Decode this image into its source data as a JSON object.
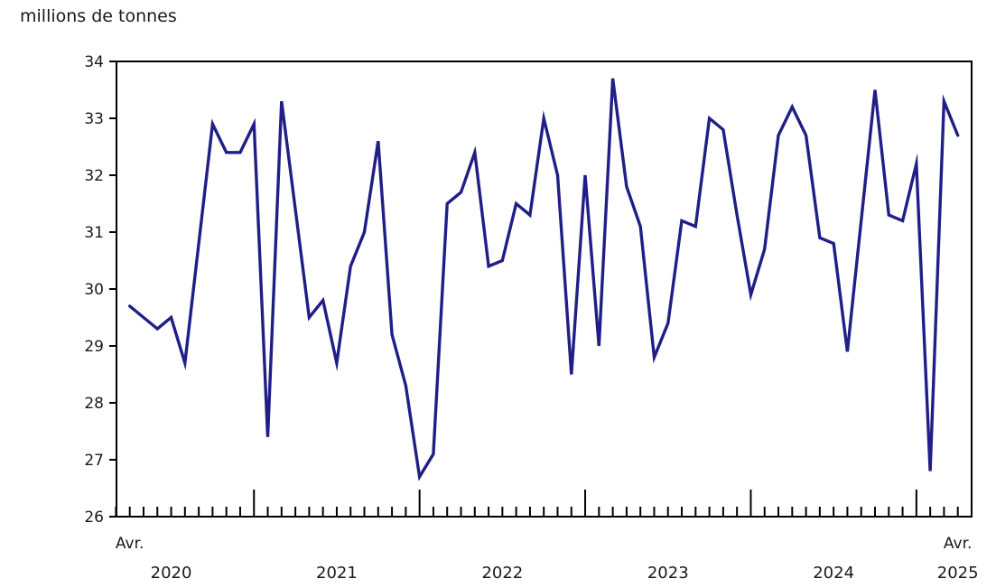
{
  "chart_data": {
    "type": "line",
    "title": "millions de tonnes",
    "categories": [
      "2020-04",
      "2020-05",
      "2020-06",
      "2020-07",
      "2020-08",
      "2020-09",
      "2020-10",
      "2020-11",
      "2020-12",
      "2021-01",
      "2021-02",
      "2021-03",
      "2021-04",
      "2021-05",
      "2021-06",
      "2021-07",
      "2021-08",
      "2021-09",
      "2021-10",
      "2021-11",
      "2021-12",
      "2022-01",
      "2022-02",
      "2022-03",
      "2022-04",
      "2022-05",
      "2022-06",
      "2022-07",
      "2022-08",
      "2022-09",
      "2022-10",
      "2022-11",
      "2022-12",
      "2023-01",
      "2023-02",
      "2023-03",
      "2023-04",
      "2023-05",
      "2023-06",
      "2023-07",
      "2023-08",
      "2023-09",
      "2023-10",
      "2023-11",
      "2023-12",
      "2024-01",
      "2024-02",
      "2024-03",
      "2024-04",
      "2024-05",
      "2024-06",
      "2024-07",
      "2024-08",
      "2024-09",
      "2024-10",
      "2024-11",
      "2024-12",
      "2025-01",
      "2025-02",
      "2025-03",
      "2025-04"
    ],
    "values": [
      29.7,
      29.5,
      29.3,
      29.5,
      28.7,
      30.8,
      32.9,
      32.4,
      32.4,
      32.9,
      27.4,
      33.3,
      31.4,
      29.5,
      29.8,
      28.7,
      30.4,
      31.0,
      32.6,
      29.2,
      28.3,
      26.7,
      27.1,
      31.5,
      31.7,
      32.4,
      30.4,
      30.5,
      31.5,
      31.3,
      33.0,
      32.0,
      28.5,
      32.0,
      29.0,
      33.7,
      31.8,
      31.1,
      28.8,
      29.4,
      31.2,
      31.1,
      33.0,
      32.8,
      31.3,
      29.9,
      30.7,
      32.7,
      33.2,
      32.7,
      30.9,
      30.8,
      28.9,
      31.2,
      33.5,
      31.3,
      31.2,
      32.2,
      26.8,
      33.3,
      32.7
    ],
    "ylim": [
      26,
      34
    ],
    "yticks": [
      26,
      27,
      28,
      29,
      30,
      31,
      32,
      33,
      34
    ],
    "x_axis": {
      "first_tick_label": "Avr.",
      "last_tick_label": "Avr.",
      "year_labels": [
        "2020",
        "2021",
        "2022",
        "2023",
        "2024",
        "2025"
      ]
    },
    "grid": false,
    "legend": false,
    "line_color": "#1f1f87",
    "axis_color": "#000000",
    "text_color": "#1a1a1a"
  }
}
